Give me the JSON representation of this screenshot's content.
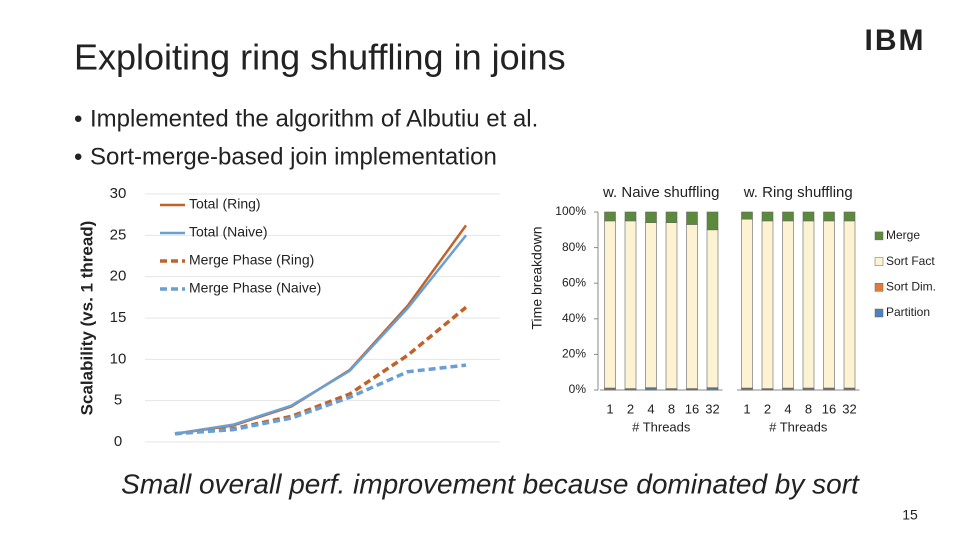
{
  "title": "Exploiting ring shuffling in joins",
  "logo": "IBM",
  "bullets": [
    "Implemented the algorithm of Albutiu et al.",
    "Sort-merge-based join implementation"
  ],
  "chart_data": [
    {
      "type": "line",
      "ylabel": "Scalability (vs. 1 thread)",
      "categories": [
        null,
        null,
        null,
        null,
        null,
        null
      ],
      "ylim": [
        0,
        30
      ],
      "yticks": [
        0,
        5,
        10,
        15,
        20,
        25,
        30
      ],
      "grid": true,
      "legend": "top-left",
      "series": [
        {
          "name": "Total (Ring)",
          "color": "#c0632b",
          "dashed": false,
          "values": [
            1,
            2,
            4.3,
            8.7,
            16.5,
            26.2
          ]
        },
        {
          "name": "Total (Naive)",
          "color": "#6a9fd4",
          "dashed": false,
          "values": [
            1,
            2.1,
            4.4,
            8.6,
            16.2,
            25
          ]
        },
        {
          "name": "Merge Phase (Ring)",
          "color": "#c0632b",
          "dashed": true,
          "values": [
            1,
            1.6,
            3.1,
            5.8,
            10.5,
            16.3
          ]
        },
        {
          "name": "Merge Phase (Naive)",
          "color": "#6a9fd4",
          "dashed": true,
          "values": [
            1,
            1.5,
            2.9,
            5.4,
            8.5,
            9.3
          ]
        }
      ]
    },
    {
      "type": "stacked-bar",
      "ylabel": "Time breakdown",
      "ylim": [
        0,
        100
      ],
      "yticks": [
        {
          "value": 0,
          "label": "0%"
        },
        {
          "value": 20,
          "label": "20%"
        },
        {
          "value": 40,
          "label": "40%"
        },
        {
          "value": 60,
          "label": "60%"
        },
        {
          "value": 80,
          "label": "80%"
        },
        {
          "value": 100,
          "label": "100%"
        }
      ],
      "legend": "right",
      "series": [
        {
          "name": "Partition",
          "color": "#4f81bd"
        },
        {
          "name": "Sort Dim.",
          "color": "#e07b39"
        },
        {
          "name": "Sort Fact",
          "color": "#fdf3d3"
        },
        {
          "name": "Merge",
          "color": "#5b8a3c"
        }
      ],
      "panels": [
        {
          "title": "w. Naive shuffling",
          "xlabel": "# Threads",
          "categories": [
            "1",
            "2",
            "4",
            "8",
            "16",
            "32"
          ],
          "values": [
            [
              0.8,
              0.5,
              1,
              0.5,
              0.5,
              1
            ],
            [
              0.3,
              0.3,
              0.3,
              0.3,
              0.3,
              0.3
            ],
            [
              93.9,
              94.2,
              92.7,
              93.2,
              92.2,
              88.7
            ],
            [
              5,
              5,
              6,
              6,
              7,
              10
            ]
          ]
        },
        {
          "title": "w. Ring shuffling",
          "xlabel": "# Threads",
          "categories": [
            "1",
            "2",
            "4",
            "8",
            "16",
            "32"
          ],
          "values": [
            [
              0.8,
              0.5,
              0.8,
              0.8,
              0.8,
              0.8
            ],
            [
              0.3,
              0.3,
              0.3,
              0.3,
              0.3,
              0.3
            ],
            [
              94.9,
              94.2,
              93.9,
              93.9,
              93.9,
              93.9
            ],
            [
              4,
              5,
              5,
              5,
              5,
              5
            ]
          ]
        }
      ]
    }
  ],
  "conclusion": "Small overall perf. improvement because dominated by sort",
  "page_number": 15
}
